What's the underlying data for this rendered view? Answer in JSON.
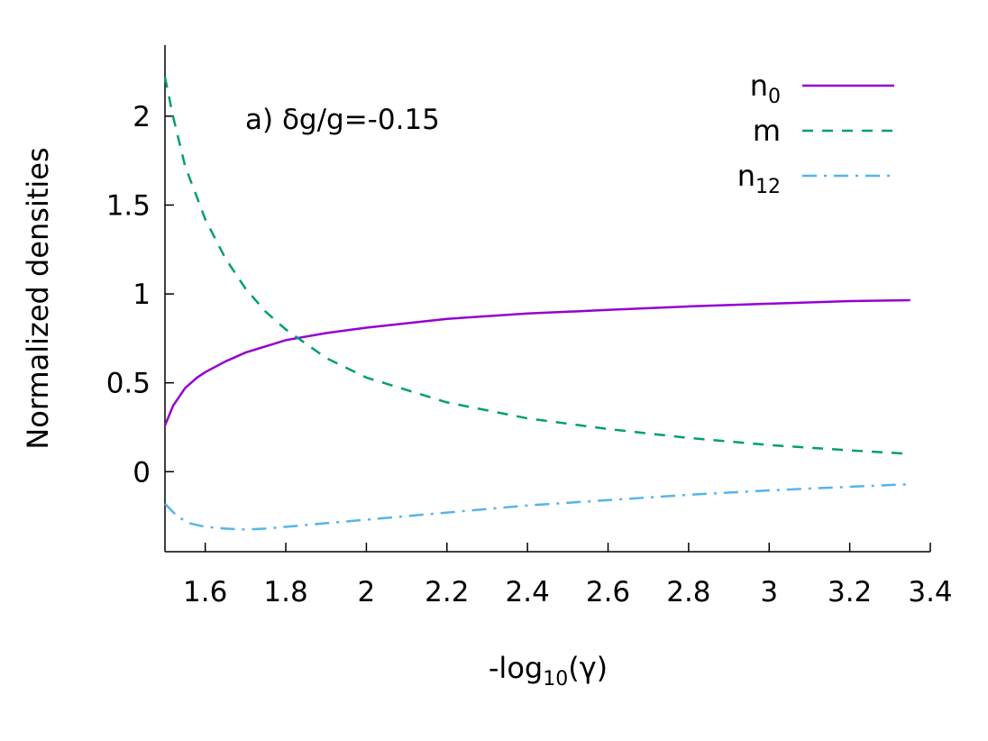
{
  "chart_data": {
    "type": "line",
    "title": "",
    "annotation": "a) δg/g=-0.15",
    "xlabel": {
      "prefix": "-log",
      "sub": "10",
      "suffix": "(γ)"
    },
    "ylabel": "Normalized densities",
    "xlim": [
      1.5,
      3.4
    ],
    "ylim": [
      -0.45,
      2.4
    ],
    "grid": false,
    "legend_position": "top-right",
    "x_ticks": [
      1.6,
      1.8,
      2.0,
      2.2,
      2.4,
      2.6,
      2.8,
      3.0,
      3.2,
      3.4
    ],
    "x_tick_labels": [
      "1.6",
      "1.8",
      "2",
      "2.2",
      "2.4",
      "2.6",
      "2.8",
      "3",
      "3.2",
      "3.4"
    ],
    "y_ticks": [
      0,
      0.5,
      1,
      1.5,
      2
    ],
    "y_tick_labels": [
      "0",
      "0.5",
      "1",
      "1.5",
      "2"
    ],
    "series": [
      {
        "name": "n0",
        "label_main": "n",
        "label_sub": "0",
        "color": "#9400d3",
        "dash": "solid",
        "x": [
          1.5,
          1.52,
          1.55,
          1.58,
          1.6,
          1.65,
          1.7,
          1.8,
          1.9,
          2.0,
          2.2,
          2.4,
          2.6,
          2.8,
          3.0,
          3.2,
          3.35
        ],
        "y": [
          0.26,
          0.37,
          0.47,
          0.53,
          0.56,
          0.62,
          0.67,
          0.74,
          0.78,
          0.81,
          0.86,
          0.89,
          0.91,
          0.93,
          0.945,
          0.96,
          0.965
        ]
      },
      {
        "name": "m",
        "label_main": "m",
        "label_sub": "",
        "color": "#009e73",
        "dash": "dashed",
        "x": [
          1.5,
          1.52,
          1.55,
          1.6,
          1.65,
          1.7,
          1.75,
          1.8,
          1.9,
          2.0,
          2.2,
          2.4,
          2.6,
          2.8,
          3.0,
          3.2,
          3.35
        ],
        "y": [
          2.22,
          2.0,
          1.72,
          1.42,
          1.2,
          1.03,
          0.9,
          0.8,
          0.64,
          0.53,
          0.39,
          0.3,
          0.24,
          0.19,
          0.15,
          0.12,
          0.1
        ]
      },
      {
        "name": "n12",
        "label_main": "n",
        "label_sub": "12",
        "color": "#56b4e9",
        "dash": "dash-dot",
        "x": [
          1.5,
          1.53,
          1.56,
          1.6,
          1.65,
          1.7,
          1.75,
          1.8,
          1.9,
          2.0,
          2.2,
          2.4,
          2.6,
          2.8,
          3.0,
          3.2,
          3.35
        ],
        "y": [
          -0.18,
          -0.25,
          -0.29,
          -0.31,
          -0.32,
          -0.325,
          -0.32,
          -0.31,
          -0.29,
          -0.27,
          -0.23,
          -0.19,
          -0.16,
          -0.13,
          -0.105,
          -0.085,
          -0.07
        ]
      }
    ]
  }
}
